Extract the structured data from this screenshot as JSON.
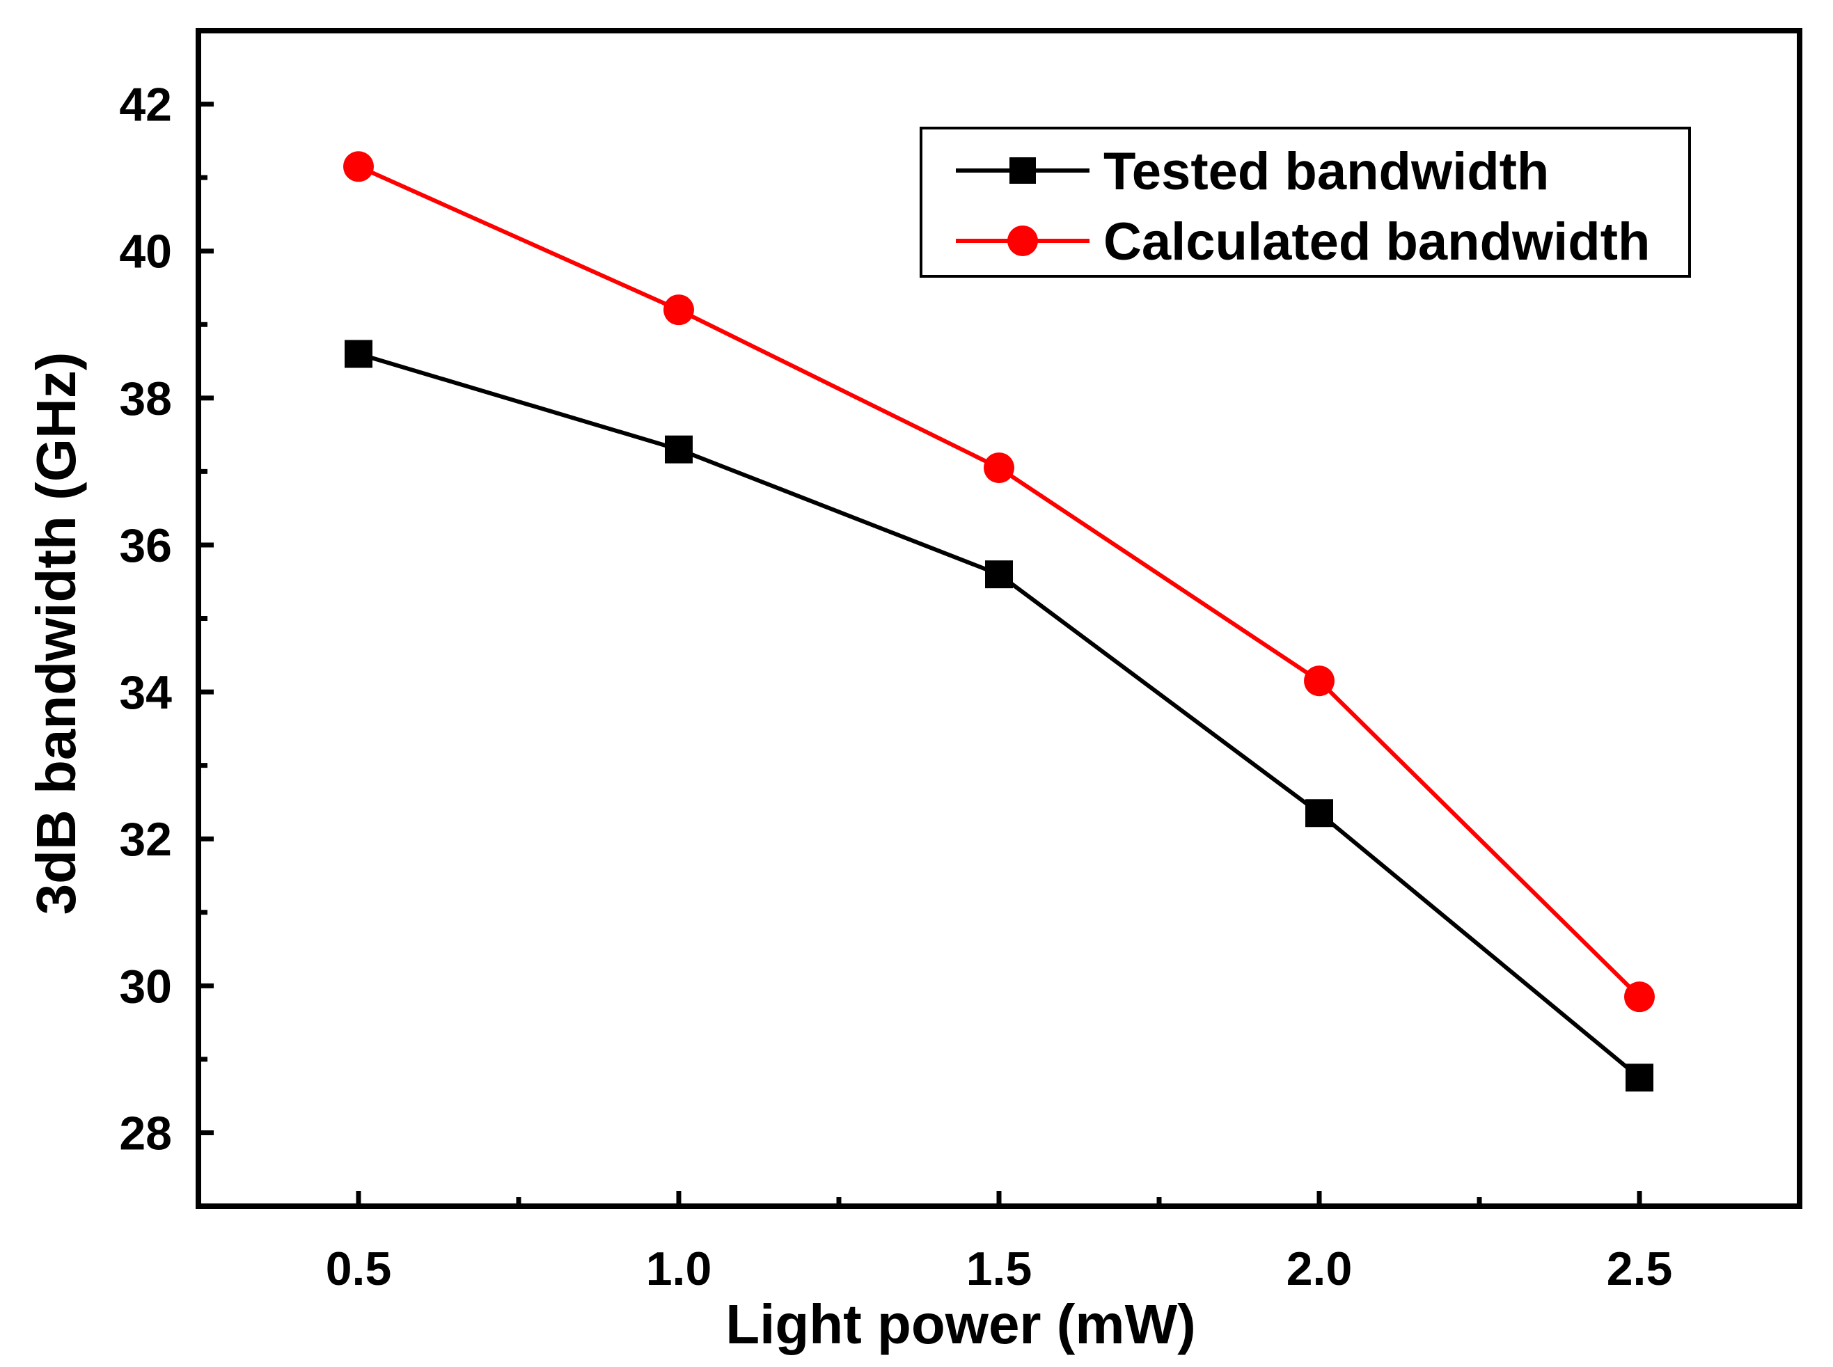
{
  "chart_data": {
    "type": "line",
    "title": "",
    "xlabel": "Light power (mW)",
    "ylabel": "3dB bandwidth (GHz)",
    "xlim": [
      0.25,
      2.75
    ],
    "ylim": [
      27,
      43
    ],
    "x": [
      0.5,
      1.0,
      1.5,
      2.0,
      2.5
    ],
    "x_tick_labels": [
      "0.5",
      "1.0",
      "1.5",
      "2.0",
      "2.5"
    ],
    "x_ticks": [
      0.5,
      1.0,
      1.5,
      2.0,
      2.5
    ],
    "x_minor_ticks": [
      0.75,
      1.25,
      1.75,
      2.25
    ],
    "y_tick_labels": [
      "28",
      "30",
      "32",
      "34",
      "36",
      "38",
      "40",
      "42"
    ],
    "y_ticks": [
      28,
      30,
      32,
      34,
      36,
      38,
      40,
      42
    ],
    "y_minor_ticks": [
      29,
      31,
      33,
      35,
      37,
      39,
      41
    ],
    "grid": false,
    "legend_position": "top-right",
    "series": [
      {
        "name": "Tested bandwidth",
        "values": [
          38.6,
          37.3,
          35.6,
          32.35,
          28.75
        ],
        "color": "#000000",
        "marker": "square"
      },
      {
        "name": "Calculated bandwidth",
        "values": [
          41.15,
          39.2,
          37.05,
          34.15,
          29.85
        ],
        "color": "#ff0000",
        "marker": "circle"
      }
    ]
  }
}
